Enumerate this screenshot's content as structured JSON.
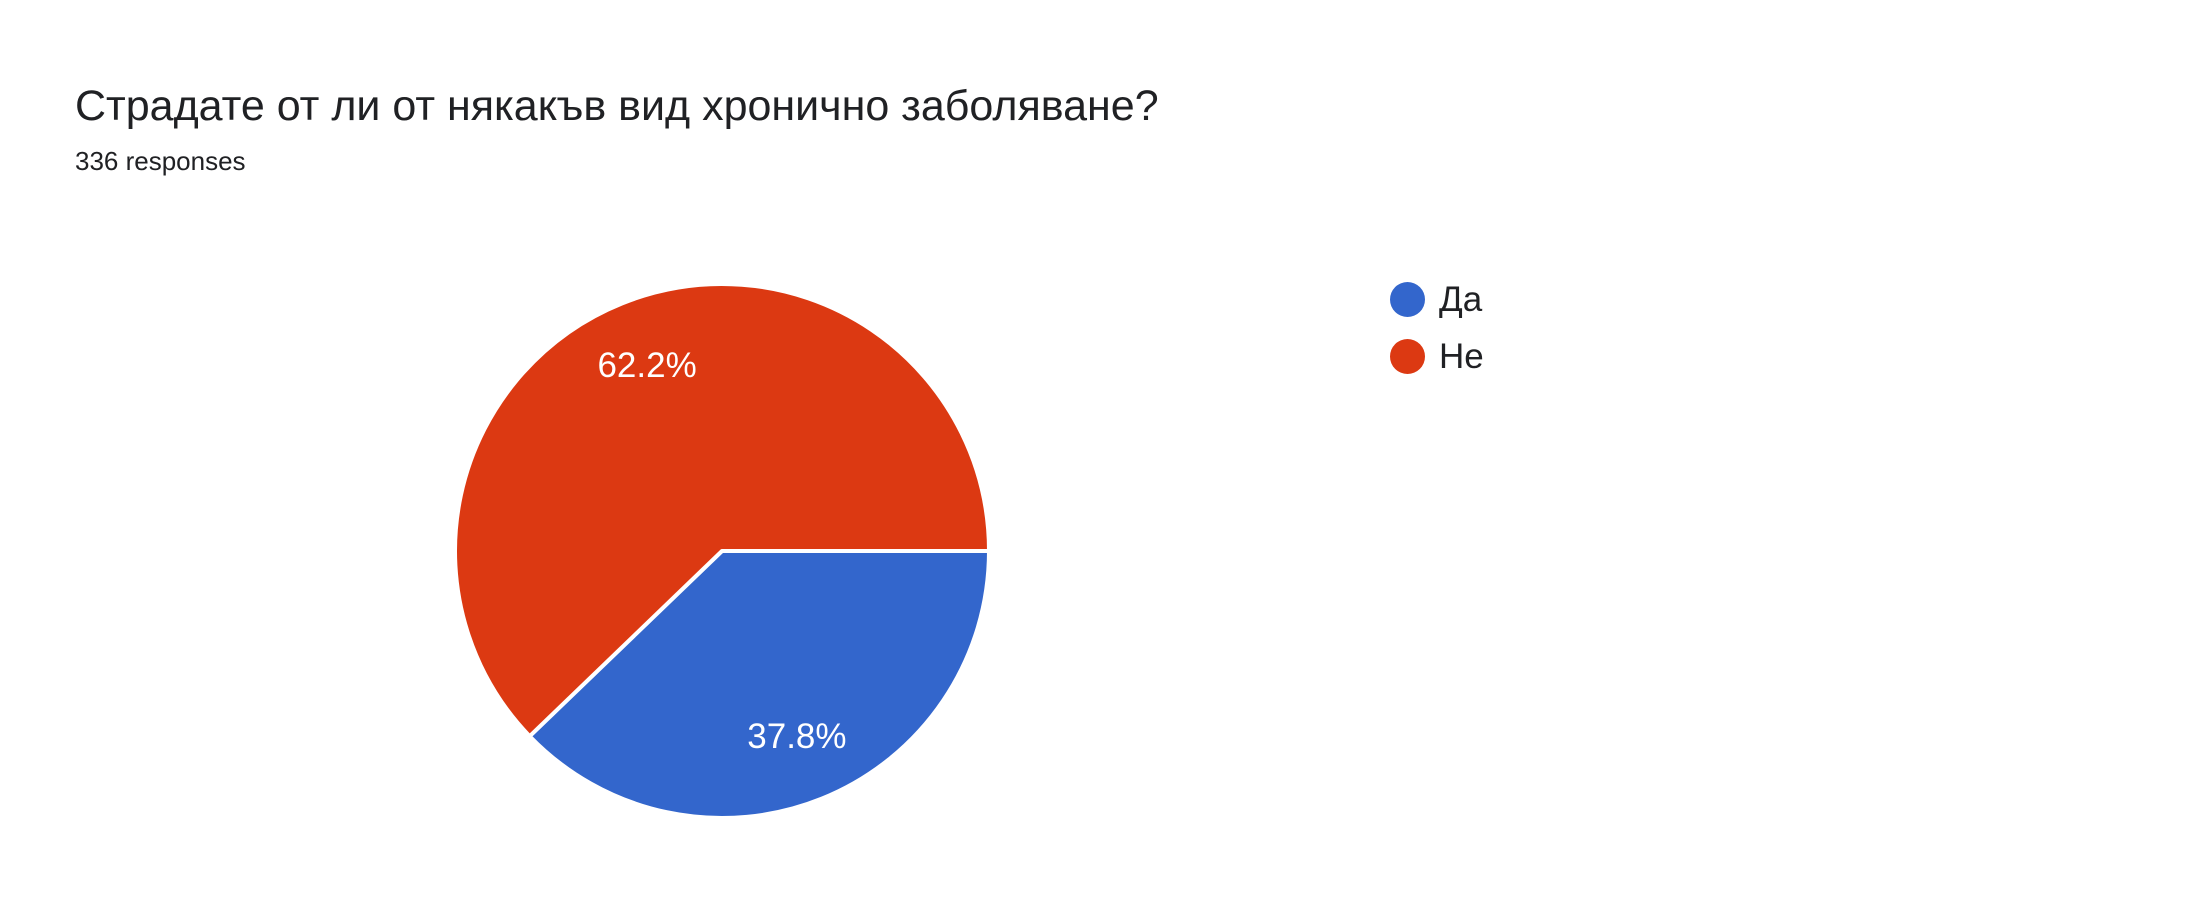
{
  "header": {
    "title": "Страдате от ли от някакъв вид хронично заболяване?",
    "responses_count": "336 responses"
  },
  "chart_data": {
    "type": "pie",
    "title": "Страдате от ли от някакъв вид хронично заболяване?",
    "subtitle": "336 responses",
    "categories": [
      "Да",
      "Не"
    ],
    "values": [
      37.8,
      62.2
    ],
    "percent_labels": [
      "37.8%",
      "62.2%"
    ],
    "colors": [
      "#3366cc",
      "#dc3912"
    ],
    "start_angle_deg": 0,
    "direction": "clockwise",
    "legend_position": "right",
    "slice_border_color": "#ffffff",
    "slice_label_color": "#ffffff",
    "background_color": "#ffffff"
  },
  "legend": {
    "items": [
      {
        "label": "Да",
        "color": "#3366cc"
      },
      {
        "label": "Не",
        "color": "#dc3912"
      }
    ]
  }
}
